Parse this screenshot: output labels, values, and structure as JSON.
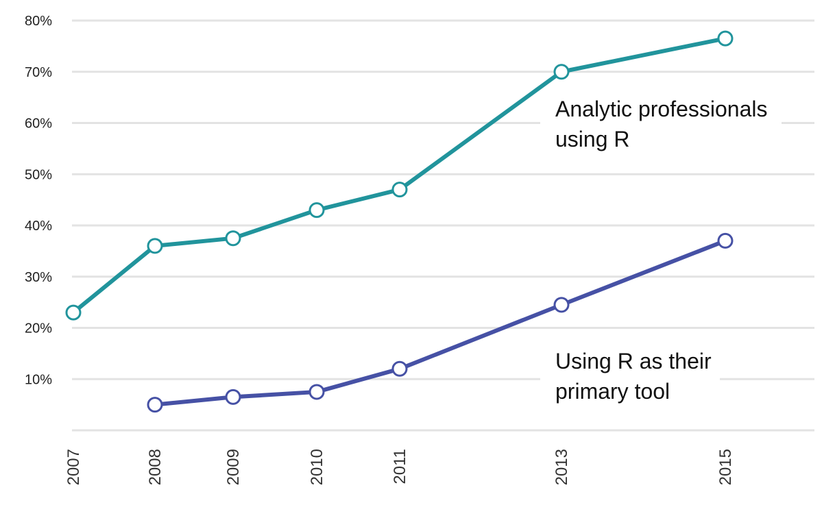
{
  "chart_data": {
    "type": "line",
    "title": "",
    "xlabel": "",
    "ylabel": "",
    "ylim": [
      0,
      80
    ],
    "y_ticks": [
      "10%",
      "20%",
      "30%",
      "40%",
      "50%",
      "60%",
      "70%",
      "80%"
    ],
    "x_ticks": [
      2007,
      2008,
      2009,
      2010,
      2011,
      2013,
      2015
    ],
    "grid": true,
    "legend": "inline annotations",
    "series": [
      {
        "name": "Analytic professionals using R",
        "color": "#21949c",
        "points": [
          {
            "x": 2007,
            "y": 23
          },
          {
            "x": 2008,
            "y": 36
          },
          {
            "x": 2009,
            "y": 37.5
          },
          {
            "x": 2010,
            "y": 43
          },
          {
            "x": 2011,
            "y": 47
          },
          {
            "x": 2013,
            "y": 70
          },
          {
            "x": 2015,
            "y": 76.5
          }
        ],
        "label_lines": [
          "Analytic professionals",
          "using R"
        ]
      },
      {
        "name": "Using R as their primary tool",
        "color": "#4651a5",
        "points": [
          {
            "x": 2008,
            "y": 5
          },
          {
            "x": 2009,
            "y": 6.5
          },
          {
            "x": 2010,
            "y": 7.5
          },
          {
            "x": 2011,
            "y": 12
          },
          {
            "x": 2013,
            "y": 24.5
          },
          {
            "x": 2015,
            "y": 37
          }
        ],
        "label_lines": [
          "Using R as their",
          "primary tool"
        ]
      }
    ]
  }
}
